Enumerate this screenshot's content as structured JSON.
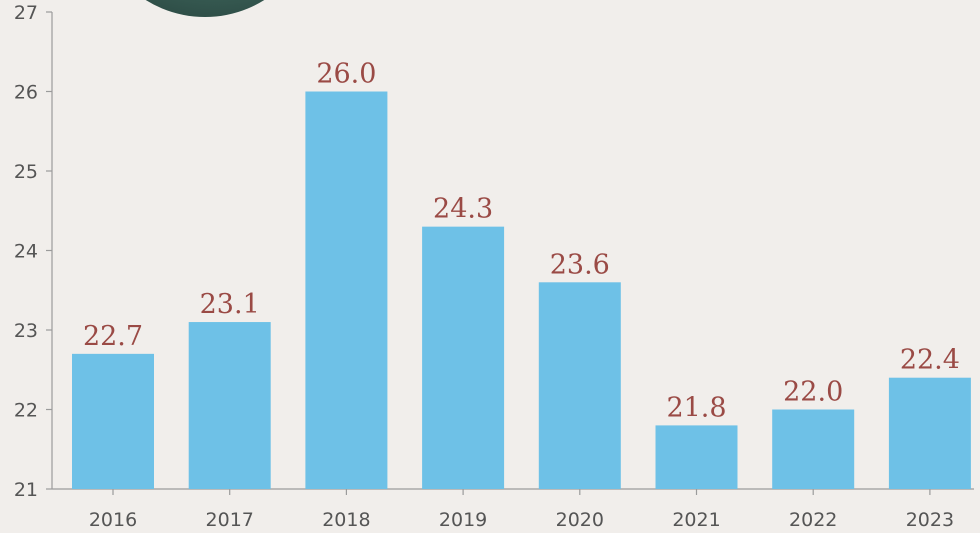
{
  "chart_data": {
    "type": "bar",
    "categories": [
      "2016",
      "2017",
      "2018",
      "2019",
      "2020",
      "2021",
      "2022",
      "2023"
    ],
    "values": [
      22.7,
      23.1,
      26.0,
      24.3,
      23.6,
      21.8,
      22.0,
      22.4
    ],
    "value_labels": [
      "22.7",
      "23.1",
      "26.0",
      "24.3",
      "23.6",
      "21.8",
      "22.0",
      "22.4"
    ],
    "yticks": [
      "21",
      "22",
      "23",
      "24",
      "25",
      "26",
      "27"
    ],
    "ylim": [
      21,
      27
    ],
    "grid": false,
    "colors": {
      "bar": "#6ec1e7",
      "data_label": "#9a4a45",
      "axis": "#9b9b9b",
      "background": "#f1eeeb"
    }
  }
}
